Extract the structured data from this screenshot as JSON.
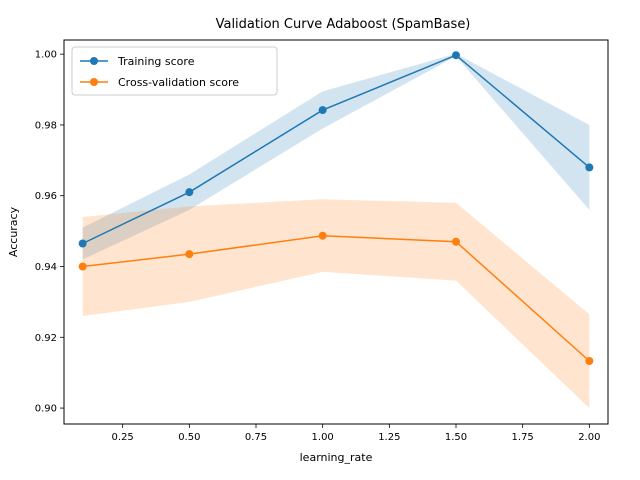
{
  "chart_data": {
    "type": "line",
    "title": "Validation Curve Adaboost (SpamBase)",
    "xlabel": "learning_rate",
    "ylabel": "Accuracy",
    "x": [
      0.1,
      0.5,
      1.0,
      1.5,
      2.0
    ],
    "xlim": [
      0.03,
      2.07
    ],
    "ylim": [
      0.8955,
      1.004
    ],
    "xticks": [
      0.25,
      0.5,
      0.75,
      1.0,
      1.25,
      1.5,
      1.75,
      2.0
    ],
    "xtick_labels": [
      "0.25",
      "0.50",
      "0.75",
      "1.00",
      "1.25",
      "1.50",
      "1.75",
      "2.00"
    ],
    "yticks": [
      0.9,
      0.92,
      0.94,
      0.96,
      0.98,
      1.0
    ],
    "ytick_labels": [
      "0.90",
      "0.92",
      "0.94",
      "0.96",
      "0.98",
      "1.00"
    ],
    "legend_position": "top-left",
    "grid": false,
    "series": [
      {
        "name": "Training score",
        "color": "#1f77b4",
        "band_color": "#1f77b4",
        "values": [
          0.9465,
          0.961,
          0.9842,
          0.9997,
          0.968
        ],
        "lower": [
          0.942,
          0.956,
          0.979,
          0.9994,
          0.956
        ],
        "upper": [
          0.951,
          0.966,
          0.9895,
          1.0001,
          0.98
        ]
      },
      {
        "name": "Cross-validation score",
        "color": "#ff7f0e",
        "band_color": "#ff7f0e",
        "values": [
          0.94,
          0.9435,
          0.9487,
          0.947,
          0.9133
        ],
        "lower": [
          0.926,
          0.93,
          0.9385,
          0.936,
          0.9
        ],
        "upper": [
          0.954,
          0.957,
          0.959,
          0.958,
          0.9265
        ]
      }
    ]
  }
}
